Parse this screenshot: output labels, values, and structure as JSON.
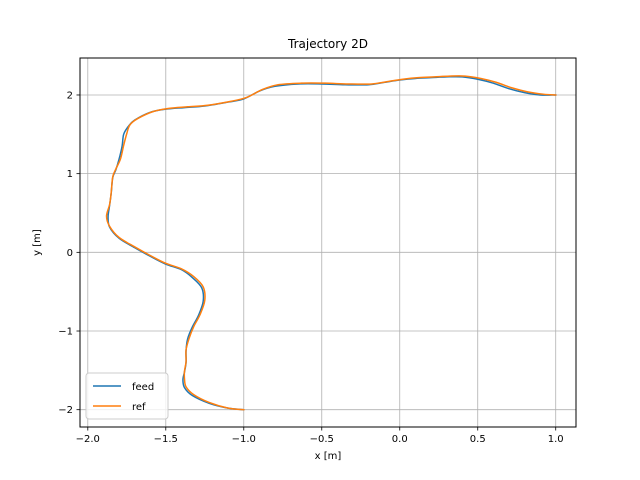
{
  "chart_data": {
    "type": "line",
    "title": "Trajectory 2D",
    "xlabel": "x [m]",
    "ylabel": "y [m]",
    "xlim": [
      -2.05,
      1.13
    ],
    "ylim": [
      -2.22,
      2.47
    ],
    "xticks": [
      -2.0,
      -1.5,
      -1.0,
      -0.5,
      0.0,
      0.5,
      1.0
    ],
    "xtick_labels": [
      "−2.0",
      "−1.5",
      "−1.0",
      "−0.5",
      "0.0",
      "0.5",
      "1.0"
    ],
    "yticks": [
      -2,
      -1,
      0,
      1,
      2
    ],
    "ytick_labels": [
      "−2",
      "−1",
      "0",
      "1",
      "2"
    ],
    "grid": true,
    "legend_position": "lower left",
    "series": [
      {
        "name": "feed",
        "color": "#1f77b4",
        "x": [
          -1.0,
          -1.1,
          -1.22,
          -1.33,
          -1.38,
          -1.39,
          -1.38,
          -1.37,
          -1.37,
          -1.36,
          -1.33,
          -1.29,
          -1.26,
          -1.27,
          -1.33,
          -1.4,
          -1.5,
          -1.6,
          -1.7,
          -1.8,
          -1.86,
          -1.87,
          -1.86,
          -1.85,
          -1.84,
          -1.82,
          -1.8,
          -1.78,
          -1.77,
          -1.74,
          -1.7,
          -1.6,
          -1.5,
          -1.38,
          -1.25,
          -1.1,
          -1.0,
          -0.9,
          -0.8,
          -0.65,
          -0.5,
          -0.35,
          -0.2,
          -0.1,
          0.0,
          0.1,
          0.2,
          0.3,
          0.4,
          0.5,
          0.6,
          0.7,
          0.8,
          0.9,
          1.0
        ],
        "y": [
          -2.0,
          -1.98,
          -1.92,
          -1.82,
          -1.72,
          -1.62,
          -1.52,
          -1.4,
          -1.25,
          -1.1,
          -0.95,
          -0.8,
          -0.62,
          -0.45,
          -0.32,
          -0.22,
          -0.15,
          -0.05,
          0.06,
          0.18,
          0.32,
          0.45,
          0.6,
          0.75,
          0.95,
          1.05,
          1.18,
          1.35,
          1.5,
          1.6,
          1.68,
          1.78,
          1.82,
          1.84,
          1.86,
          1.91,
          1.95,
          2.05,
          2.11,
          2.14,
          2.14,
          2.13,
          2.13,
          2.16,
          2.19,
          2.21,
          2.22,
          2.23,
          2.23,
          2.2,
          2.15,
          2.08,
          2.03,
          2.0,
          2.0
        ]
      },
      {
        "name": "ref",
        "color": "#ff7f0e",
        "x": [
          -1.0,
          -1.1,
          -1.22,
          -1.32,
          -1.37,
          -1.38,
          -1.38,
          -1.37,
          -1.37,
          -1.35,
          -1.32,
          -1.28,
          -1.25,
          -1.26,
          -1.32,
          -1.4,
          -1.5,
          -1.6,
          -1.7,
          -1.8,
          -1.86,
          -1.88,
          -1.86,
          -1.85,
          -1.84,
          -1.82,
          -1.79,
          -1.77,
          -1.75,
          -1.73,
          -1.68,
          -1.58,
          -1.48,
          -1.36,
          -1.23,
          -1.08,
          -0.98,
          -0.88,
          -0.78,
          -0.63,
          -0.48,
          -0.33,
          -0.18,
          -0.08,
          0.02,
          0.12,
          0.22,
          0.32,
          0.42,
          0.52,
          0.62,
          0.72,
          0.82,
          0.92,
          1.0
        ],
        "y": [
          -2.0,
          -1.98,
          -1.91,
          -1.81,
          -1.71,
          -1.61,
          -1.51,
          -1.39,
          -1.24,
          -1.09,
          -0.94,
          -0.79,
          -0.61,
          -0.44,
          -0.31,
          -0.21,
          -0.14,
          -0.04,
          0.07,
          0.19,
          0.33,
          0.46,
          0.61,
          0.76,
          0.96,
          1.06,
          1.19,
          1.36,
          1.51,
          1.62,
          1.7,
          1.79,
          1.83,
          1.85,
          1.87,
          1.92,
          1.97,
          2.07,
          2.13,
          2.15,
          2.15,
          2.14,
          2.14,
          2.17,
          2.2,
          2.22,
          2.23,
          2.24,
          2.24,
          2.21,
          2.16,
          2.09,
          2.04,
          2.01,
          2.0
        ]
      }
    ]
  }
}
